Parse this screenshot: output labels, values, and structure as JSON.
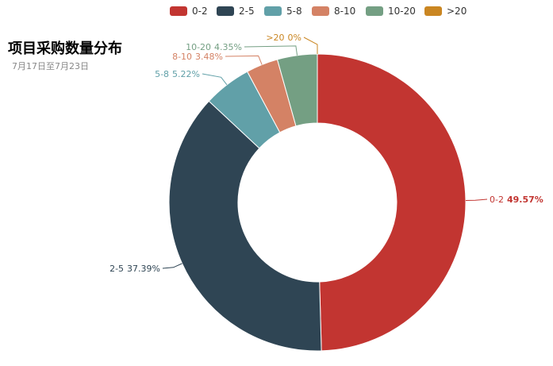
{
  "chart_data": {
    "type": "pie",
    "title": "项目采购数量分布",
    "subtitle": "7月17日至7月23日",
    "legend_position": "top",
    "categories": [
      "0-2",
      "2-5",
      "5-8",
      "8-10",
      "10-20",
      ">20"
    ],
    "values": [
      49.57,
      37.39,
      5.22,
      3.48,
      4.35,
      0
    ],
    "value_labels": [
      "49.57%",
      "37.39%",
      "5.22%",
      "3.48%",
      "4.35%",
      "0%"
    ],
    "colors": [
      "#c23531",
      "#2f4554",
      "#61a0a8",
      "#d48265",
      "#749f83",
      "#ca8622"
    ]
  }
}
